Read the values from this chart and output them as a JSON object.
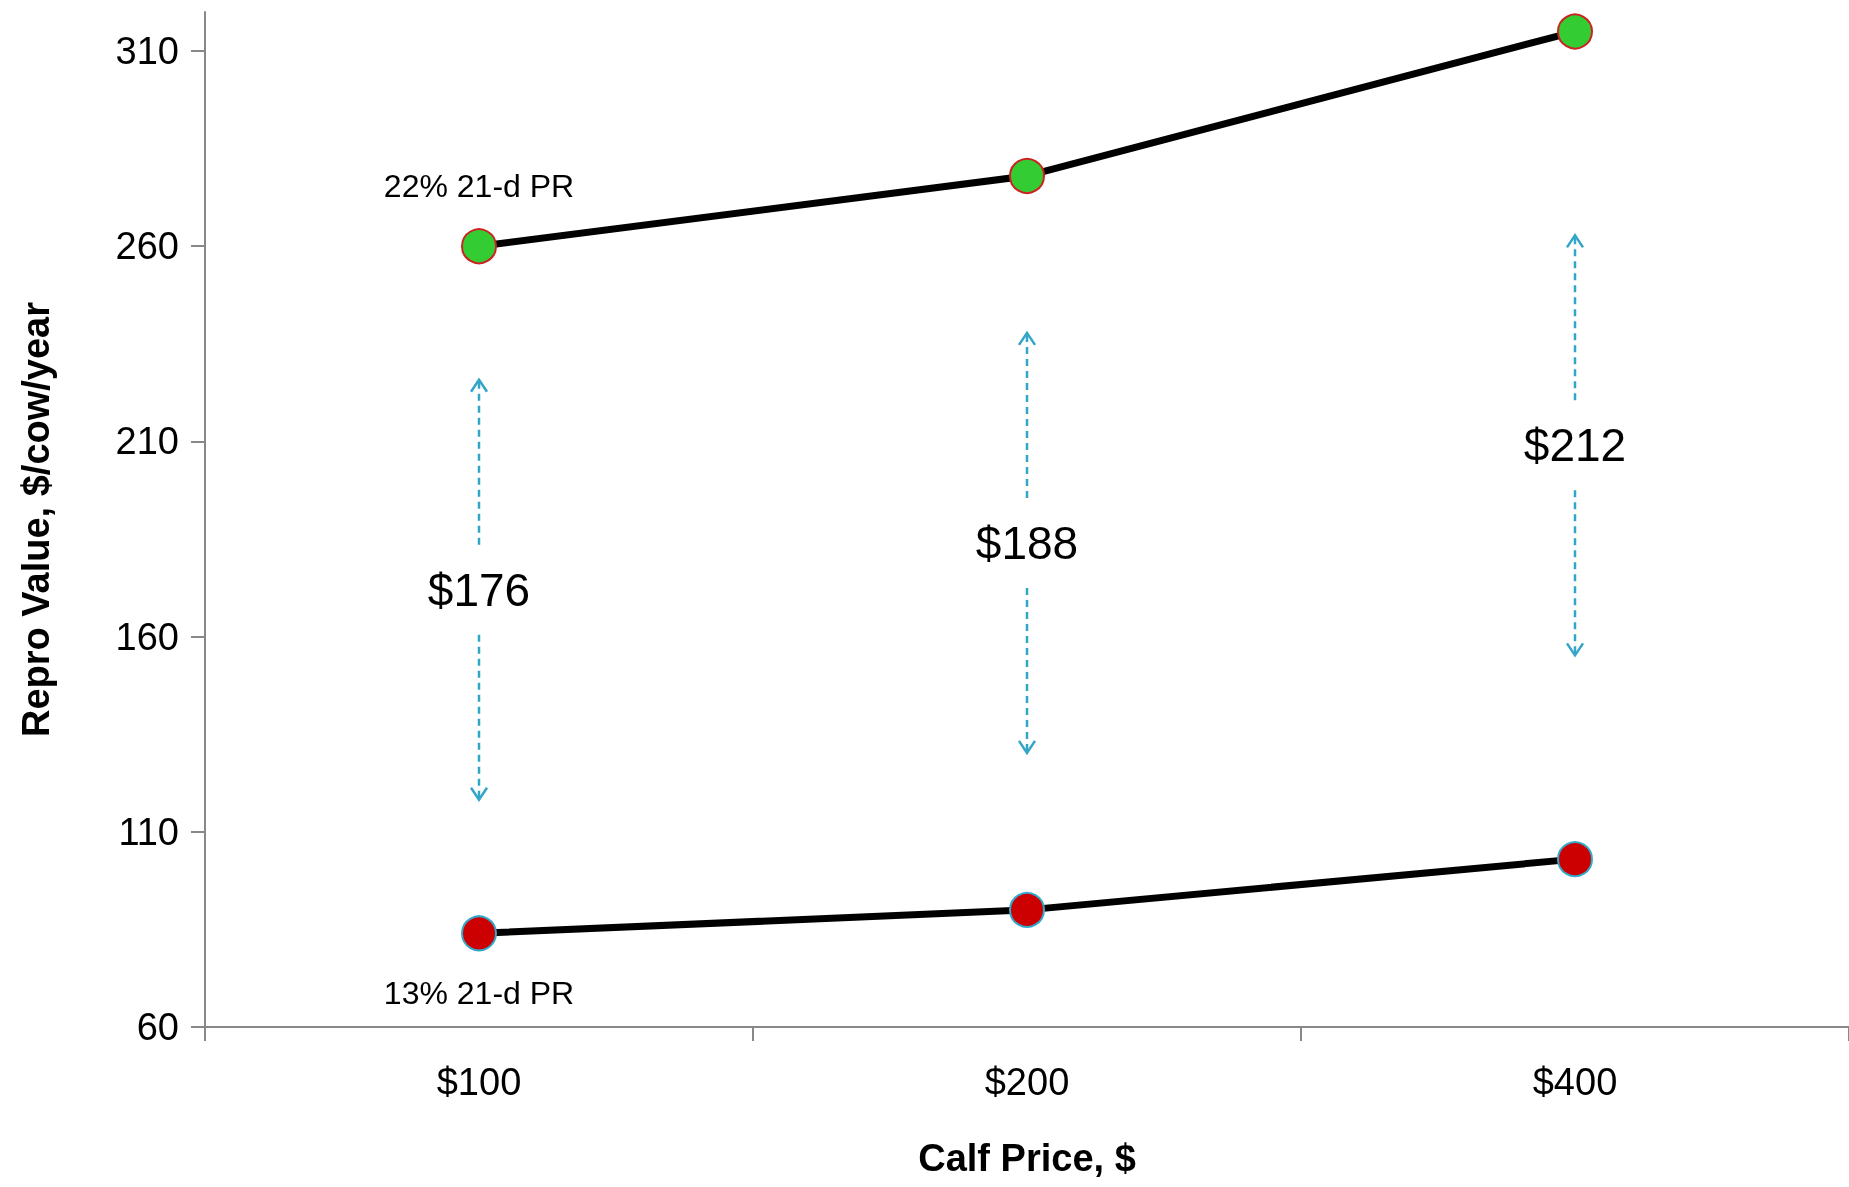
{
  "chart_data": {
    "type": "line",
    "xlabel": "Calf Price, $",
    "ylabel": "Repro Value, $/cow/year",
    "categories": [
      "$100",
      "$200",
      "$400"
    ],
    "series": [
      {
        "name": "22% 21-d PR",
        "color": "#33cc33",
        "values": [
          260,
          278,
          315
        ]
      },
      {
        "name": "13% 21-d PR",
        "color": "#cc0000",
        "values": [
          84,
          90,
          103
        ]
      }
    ],
    "ylim": [
      60,
      320
    ],
    "yticks": [
      60,
      110,
      160,
      210,
      260,
      310
    ],
    "annotations": [
      "$176",
      "$188",
      "$212"
    ],
    "grid": false,
    "legend": false,
    "marker": "circle",
    "line_style": "solid"
  }
}
